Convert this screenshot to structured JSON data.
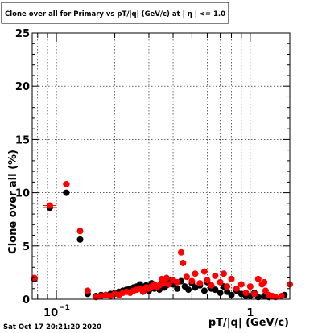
{
  "title": "Clone  over all for Primary vs pT/|q| (GeV/c) at |  η | <= 1.0",
  "footer": "Sat Oct 17 20:21:20 2020",
  "chart_data": {
    "type": "scatter",
    "xlabel": "pT/|q| (GeV/c)",
    "ylabel": "Clone  over all (%)",
    "xscale": "log",
    "xlim": [
      0.075,
      1.6
    ],
    "ylim": [
      0,
      25
    ],
    "grid": true,
    "yticks": [
      0,
      5,
      10,
      15,
      20,
      25
    ],
    "xticks_labeled": [
      {
        "value": 0.1,
        "label": "10",
        "exp": "−1"
      },
      {
        "value": 1,
        "label": "1",
        "exp": ""
      }
    ],
    "series": [
      {
        "color": "#000000",
        "points": [
          {
            "x": 0.077,
            "y": 1.9,
            "xerr": 0.002,
            "yerr": 0.15
          },
          {
            "x": 0.0925,
            "y": 8.6,
            "xerr": 0.0075,
            "yerr": 0.25
          },
          {
            "x": 0.1125,
            "y": 10.0,
            "xerr": 0.005,
            "yerr": 0.2
          },
          {
            "x": 0.1325,
            "y": 5.6,
            "xerr": 0.004,
            "yerr": 0.2
          },
          {
            "x": 0.145,
            "y": 0.5
          },
          {
            "x": 0.16,
            "y": 0.3
          },
          {
            "x": 0.17,
            "y": 0.4
          },
          {
            "x": 0.18,
            "y": 0.4
          },
          {
            "x": 0.19,
            "y": 0.5
          },
          {
            "x": 0.2,
            "y": 0.6
          },
          {
            "x": 0.21,
            "y": 0.7
          },
          {
            "x": 0.22,
            "y": 0.8
          },
          {
            "x": 0.23,
            "y": 0.9
          },
          {
            "x": 0.24,
            "y": 1.0
          },
          {
            "x": 0.25,
            "y": 1.1
          },
          {
            "x": 0.26,
            "y": 1.2
          },
          {
            "x": 0.27,
            "y": 1.4
          },
          {
            "x": 0.28,
            "y": 1.1
          },
          {
            "x": 0.29,
            "y": 1.3
          },
          {
            "x": 0.3,
            "y": 0.8
          },
          {
            "x": 0.31,
            "y": 1.5
          },
          {
            "x": 0.32,
            "y": 1.0
          },
          {
            "x": 0.33,
            "y": 1.2
          },
          {
            "x": 0.34,
            "y": 0.9
          },
          {
            "x": 0.35,
            "y": 1.6
          },
          {
            "x": 0.36,
            "y": 1.1
          },
          {
            "x": 0.37,
            "y": 1.3
          },
          {
            "x": 0.38,
            "y": 1.8
          },
          {
            "x": 0.4,
            "y": 1.4
          },
          {
            "x": 0.42,
            "y": 1.0
          },
          {
            "x": 0.44,
            "y": 1.7
          },
          {
            "x": 0.46,
            "y": 1.2
          },
          {
            "x": 0.48,
            "y": 0.9
          },
          {
            "x": 0.5,
            "y": 1.5
          },
          {
            "x": 0.52,
            "y": 1.1
          },
          {
            "x": 0.55,
            "y": 1.3
          },
          {
            "x": 0.58,
            "y": 0.8
          },
          {
            "x": 0.6,
            "y": 1.6
          },
          {
            "x": 0.63,
            "y": 1.0
          },
          {
            "x": 0.66,
            "y": 0.9
          },
          {
            "x": 0.7,
            "y": 0.6
          },
          {
            "x": 0.73,
            "y": 1.2
          },
          {
            "x": 0.76,
            "y": 0.7
          },
          {
            "x": 0.8,
            "y": 0.4
          },
          {
            "x": 0.85,
            "y": 0.8
          },
          {
            "x": 0.9,
            "y": 0.5
          },
          {
            "x": 0.95,
            "y": 0.3
          },
          {
            "x": 1.0,
            "y": 0.3
          },
          {
            "x": 1.05,
            "y": 0.6
          },
          {
            "x": 1.1,
            "y": 0.2
          },
          {
            "x": 1.18,
            "y": 0.3
          },
          {
            "x": 1.25,
            "y": 0.2
          },
          {
            "x": 1.5,
            "y": 0.4,
            "xerr": 0.04,
            "yerr": 0.2
          }
        ]
      },
      {
        "color": "#ff0000",
        "points": [
          {
            "x": 0.077,
            "y": 2.0,
            "xerr": 0.002,
            "yerr": 0.15
          },
          {
            "x": 0.0925,
            "y": 8.8,
            "xerr": 0.0075,
            "yerr": 0.25
          },
          {
            "x": 0.1125,
            "y": 10.8,
            "xerr": 0.005,
            "yerr": 0.2
          },
          {
            "x": 0.1325,
            "y": 6.4,
            "xerr": 0.004,
            "yerr": 0.2
          },
          {
            "x": 0.145,
            "y": 0.8
          },
          {
            "x": 0.16,
            "y": 0.2
          },
          {
            "x": 0.17,
            "y": 0.3
          },
          {
            "x": 0.18,
            "y": 0.4
          },
          {
            "x": 0.19,
            "y": 0.3
          },
          {
            "x": 0.2,
            "y": 0.5
          },
          {
            "x": 0.21,
            "y": 0.4
          },
          {
            "x": 0.22,
            "y": 0.6
          },
          {
            "x": 0.23,
            "y": 0.7
          },
          {
            "x": 0.24,
            "y": 0.6
          },
          {
            "x": 0.25,
            "y": 0.8
          },
          {
            "x": 0.26,
            "y": 0.9
          },
          {
            "x": 0.27,
            "y": 1.0
          },
          {
            "x": 0.28,
            "y": 0.7
          },
          {
            "x": 0.29,
            "y": 1.1
          },
          {
            "x": 0.3,
            "y": 1.0
          },
          {
            "x": 0.31,
            "y": 1.2
          },
          {
            "x": 0.32,
            "y": 1.4
          },
          {
            "x": 0.33,
            "y": 1.1
          },
          {
            "x": 0.34,
            "y": 1.3
          },
          {
            "x": 0.35,
            "y": 1.9
          },
          {
            "x": 0.36,
            "y": 1.5
          },
          {
            "x": 0.37,
            "y": 2.0
          },
          {
            "x": 0.38,
            "y": 1.4
          },
          {
            "x": 0.4,
            "y": 1.8
          },
          {
            "x": 0.42,
            "y": 1.6
          },
          {
            "x": 0.44,
            "y": 4.4
          },
          {
            "x": 0.45,
            "y": 3.4
          },
          {
            "x": 0.47,
            "y": 2.1
          },
          {
            "x": 0.5,
            "y": 1.7
          },
          {
            "x": 0.52,
            "y": 2.4
          },
          {
            "x": 0.55,
            "y": 1.5
          },
          {
            "x": 0.58,
            "y": 2.6
          },
          {
            "x": 0.6,
            "y": 1.8
          },
          {
            "x": 0.63,
            "y": 1.3
          },
          {
            "x": 0.66,
            "y": 2.2
          },
          {
            "x": 0.7,
            "y": 1.6
          },
          {
            "x": 0.73,
            "y": 2.4
          },
          {
            "x": 0.76,
            "y": 1.2
          },
          {
            "x": 0.8,
            "y": 1.9
          },
          {
            "x": 0.85,
            "y": 1.0
          },
          {
            "x": 0.9,
            "y": 1.4
          },
          {
            "x": 0.95,
            "y": 0.6
          },
          {
            "x": 1.0,
            "y": 1.2
          },
          {
            "x": 1.05,
            "y": 0.5
          },
          {
            "x": 1.1,
            "y": 1.9
          },
          {
            "x": 1.15,
            "y": 1.4
          },
          {
            "x": 1.18,
            "y": 1.6
          },
          {
            "x": 1.2,
            "y": 0.8
          },
          {
            "x": 1.25,
            "y": 0.4
          },
          {
            "x": 1.3,
            "y": 0.3
          },
          {
            "x": 1.35,
            "y": 0.2
          },
          {
            "x": 1.45,
            "y": 0.3
          },
          {
            "x": 1.6,
            "y": 1.4,
            "xerr": 0.03,
            "yerr": 0.3
          }
        ]
      }
    ]
  }
}
